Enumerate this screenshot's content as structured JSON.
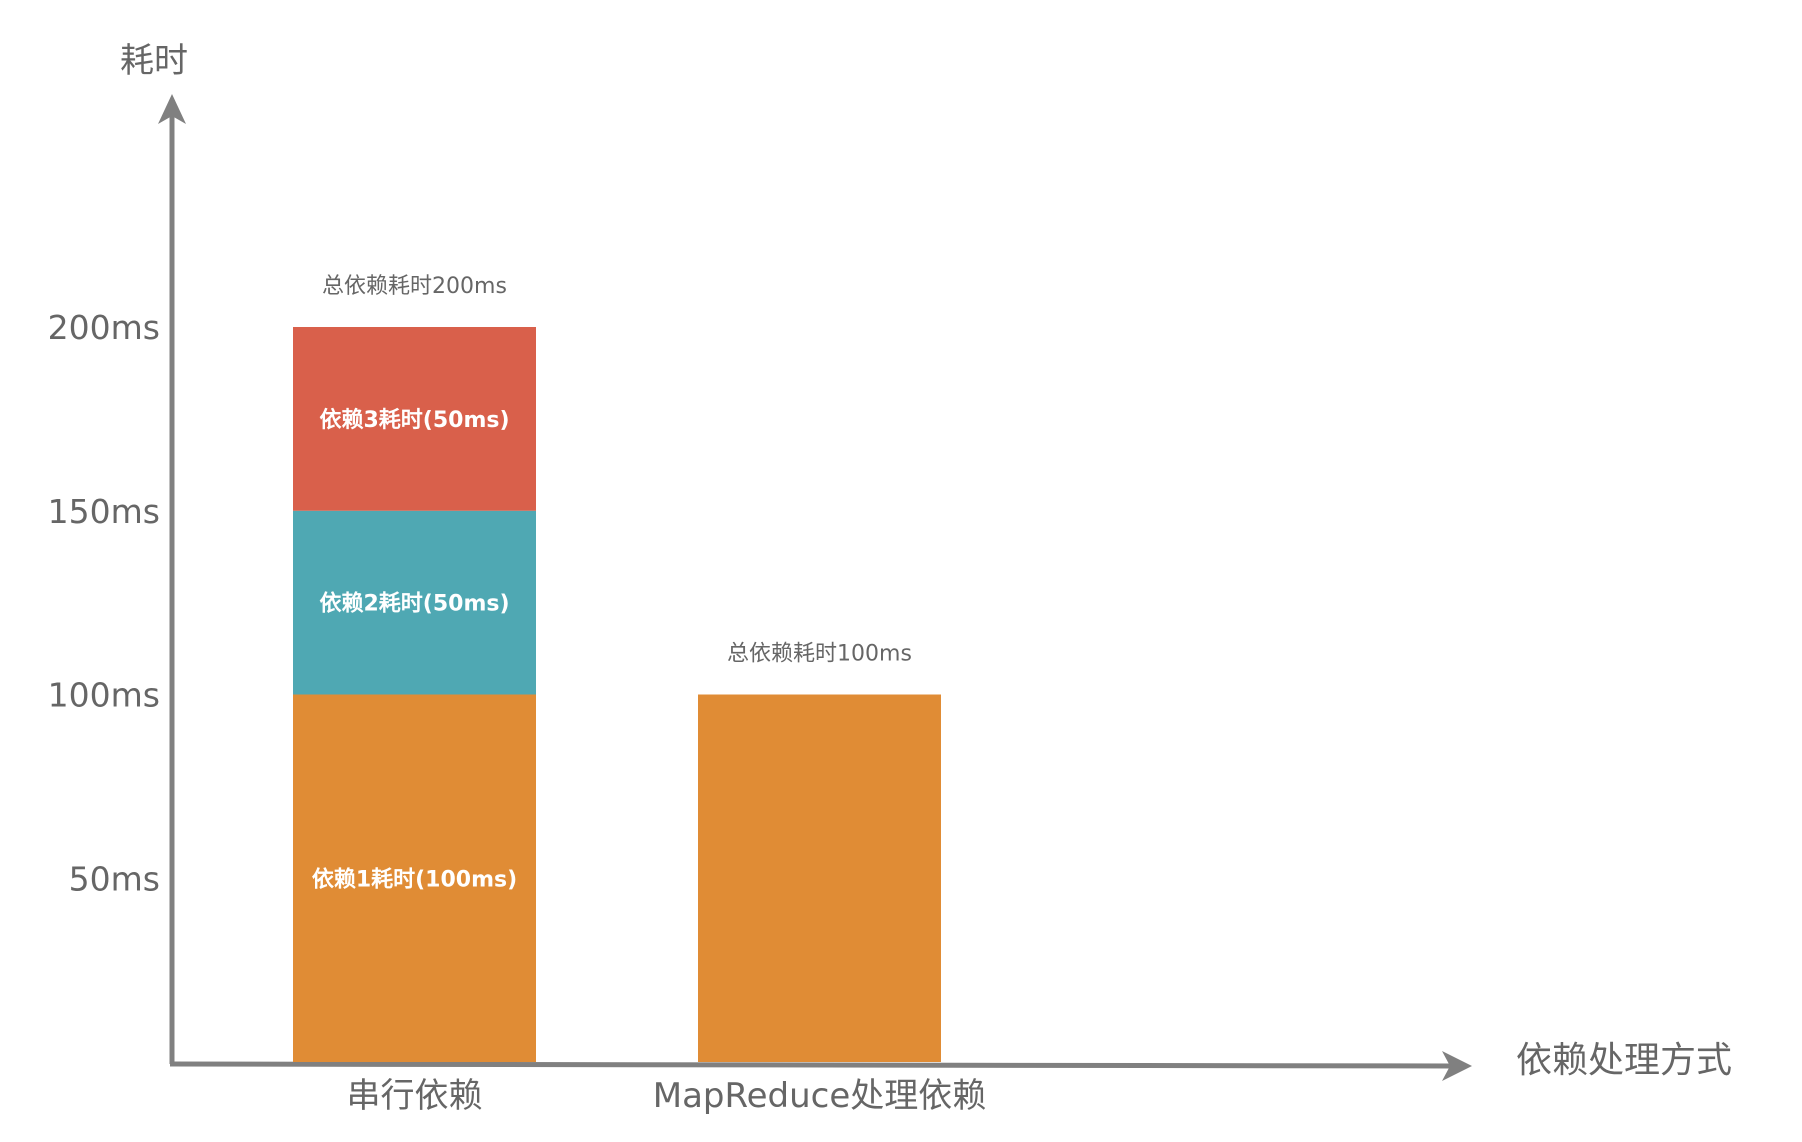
{
  "chart_data": {
    "type": "bar",
    "stacked": true,
    "title": "",
    "ylabel": "耗时",
    "xlabel": "依赖处理方式",
    "categories": [
      "串行依赖",
      "MapReduce处理依赖"
    ],
    "yticks": [
      "50ms",
      "100ms",
      "150ms",
      "200ms"
    ],
    "ytick_values": [
      50,
      100,
      150,
      200
    ],
    "ylim": [
      0,
      200
    ],
    "grid": false,
    "bars": [
      {
        "category": "串行依赖",
        "total_label": "总依赖耗时200ms",
        "segments": [
          {
            "label": "依赖1耗时(100ms)",
            "value": 100,
            "color": "#E08C35"
          },
          {
            "label": "依赖2耗时(50ms)",
            "value": 50,
            "color": "#4FA8B3"
          },
          {
            "label": "依赖3耗时(50ms)",
            "value": 50,
            "color": "#D9604B"
          }
        ]
      },
      {
        "category": "MapReduce处理依赖",
        "total_label": "总依赖耗时100ms",
        "segments": [
          {
            "label": "",
            "value": 100,
            "color": "#E08C35"
          }
        ]
      }
    ],
    "axis_color": "#808080",
    "text_color": "#666666"
  }
}
